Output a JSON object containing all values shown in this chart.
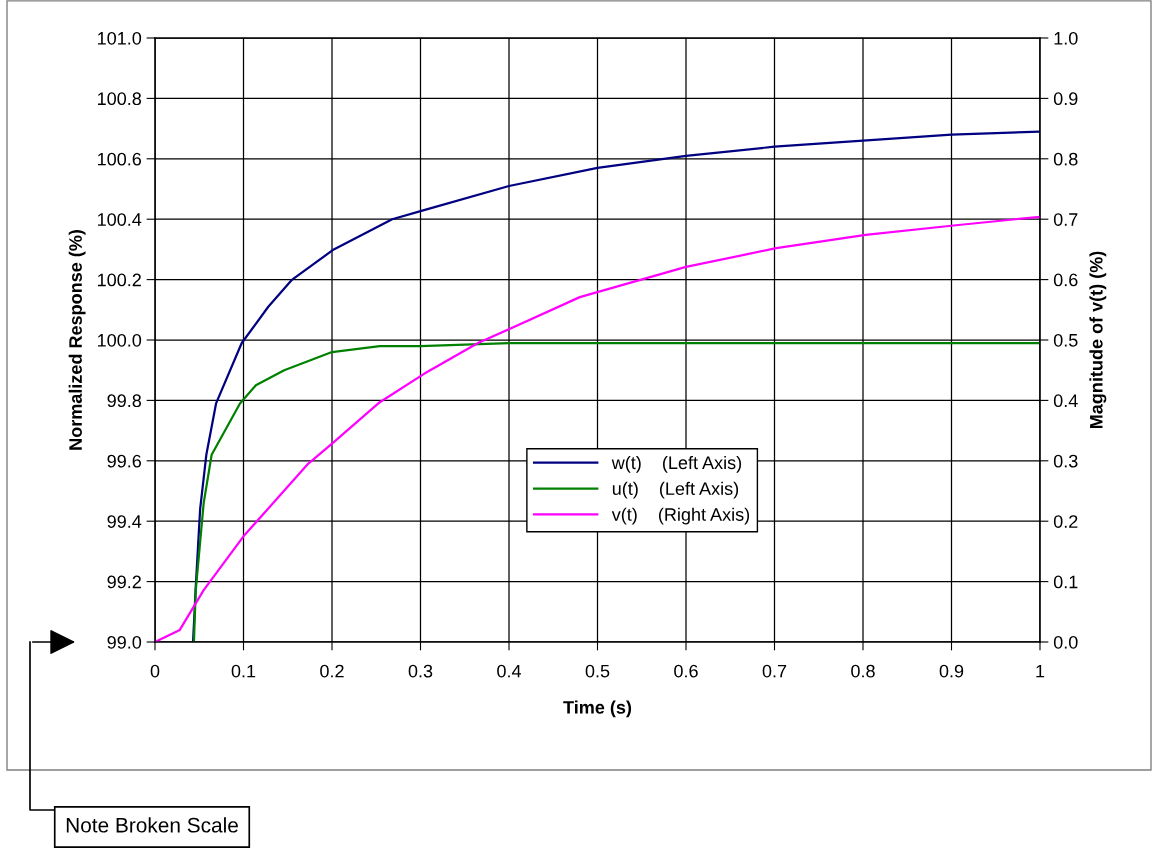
{
  "chart_data": {
    "type": "line",
    "xlabel": "Time (s)",
    "ylabel": "Normalized Response (%)",
    "y2label": "Magnitude of v(t) (%)",
    "series": [
      {
        "name": "w(t)    (Left Axis)",
        "color": "#000080",
        "x": [
          0.043,
          0.046,
          0.051,
          0.058,
          0.069,
          0.098,
          0.128,
          0.155,
          0.202,
          0.268,
          0.304,
          0.4,
          0.5,
          0.6,
          0.7,
          0.8,
          0.9,
          1.0
        ],
        "values": [
          99.0,
          99.18,
          99.44,
          99.62,
          99.79,
          99.99,
          100.11,
          100.2,
          100.3,
          100.4,
          100.43,
          100.51,
          100.57,
          100.61,
          100.64,
          100.66,
          100.68,
          100.69
        ]
      },
      {
        "name": "u(t)    (Left Axis)",
        "color": "#008000",
        "x": [
          0.044,
          0.046,
          0.055,
          0.064,
          0.096,
          0.114,
          0.146,
          0.2,
          0.254,
          0.3,
          0.4,
          1.0
        ],
        "values": [
          99.0,
          99.17,
          99.46,
          99.62,
          99.79,
          99.85,
          99.9,
          99.96,
          99.98,
          99.98,
          99.99,
          99.99
        ]
      },
      {
        "name": "v(t)    (Right Axis)",
        "color": "#ff00ff",
        "axis": "y2",
        "x": [
          0,
          0.028,
          0.055,
          0.1,
          0.173,
          0.202,
          0.254,
          0.304,
          0.365,
          0.403,
          0.48,
          0.6,
          0.702,
          0.803,
          0.905,
          1.0
        ],
        "values": [
          0,
          0.02,
          0.086,
          0.175,
          0.295,
          0.331,
          0.397,
          0.444,
          0.495,
          0.52,
          0.571,
          0.621,
          0.652,
          0.674,
          0.69,
          0.704
        ]
      }
    ],
    "xlim": [
      0,
      1
    ],
    "xticks": [
      0,
      0.1,
      0.2,
      0.3,
      0.4,
      0.5,
      0.6,
      0.7,
      0.8,
      0.9,
      1
    ],
    "ylim": [
      99.0,
      101.0
    ],
    "yticks": [
      {
        "value": 99.0,
        "label": "99.0"
      },
      {
        "value": 99.2,
        "label": "99.2"
      },
      {
        "value": 99.4,
        "label": "99.4"
      },
      {
        "value": 99.6,
        "label": "99.6"
      },
      {
        "value": 99.8,
        "label": "99.8"
      },
      {
        "value": 100.0,
        "label": "100.0"
      },
      {
        "value": 100.2,
        "label": "100.2"
      },
      {
        "value": 100.4,
        "label": "100.4"
      },
      {
        "value": 100.6,
        "label": "100.6"
      },
      {
        "value": 100.8,
        "label": "100.8"
      },
      {
        "value": 101.0,
        "label": "101.0"
      }
    ],
    "y2lim": [
      0,
      1
    ],
    "y2ticks": [
      {
        "value": 0,
        "label": "0.0"
      },
      {
        "value": 0.1,
        "label": "0.1"
      },
      {
        "value": 0.2,
        "label": "0.2"
      },
      {
        "value": 0.3,
        "label": "0.3"
      },
      {
        "value": 0.4,
        "label": "0.4"
      },
      {
        "value": 0.5,
        "label": "0.5"
      },
      {
        "value": 0.6,
        "label": "0.6"
      },
      {
        "value": 0.7,
        "label": "0.7"
      },
      {
        "value": 0.8,
        "label": "0.8"
      },
      {
        "value": 0.9,
        "label": "0.9"
      },
      {
        "value": 1,
        "label": "1.0"
      }
    ],
    "annotations": [
      "Note Broken Scale"
    ],
    "grid": true,
    "legend": "center",
    "marker": "none",
    "line_style": "solid"
  }
}
